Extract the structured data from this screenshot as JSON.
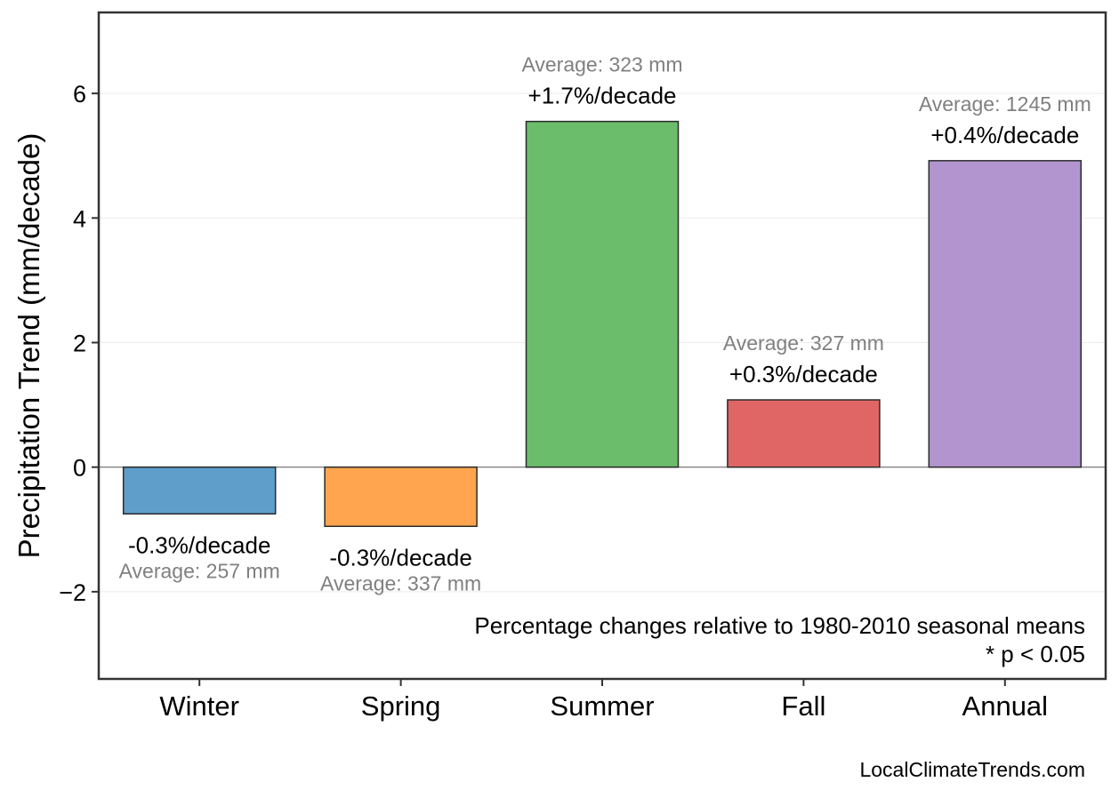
{
  "chart_data": {
    "type": "bar",
    "categories": [
      "Winter",
      "Spring",
      "Summer",
      "Fall",
      "Annual"
    ],
    "values": [
      -0.75,
      -0.95,
      5.55,
      1.08,
      4.92
    ],
    "colors": [
      "#5f9ecb",
      "#ffa44f",
      "#6bbd6b",
      "#e06666",
      "#b294cf"
    ],
    "bar_labels": [
      "-0.3%/decade",
      "-0.3%/decade",
      "+1.7%/decade",
      "+0.3%/decade",
      "+0.4%/decade"
    ],
    "average_labels": [
      "Average: 257 mm",
      "Average: 337 mm",
      "Average: 323 mm",
      "Average: 327 mm",
      "Average: 1245 mm"
    ],
    "xlabel": "",
    "ylabel": "Precipitation Trend (mm/decade)",
    "ylim": [
      -3.4,
      7.3
    ],
    "yticks": [
      -2,
      0,
      2,
      4,
      6
    ],
    "ytick_labels": [
      "−2",
      "0",
      "2",
      "4",
      "6"
    ],
    "grid": true,
    "zero_line": true,
    "annotations": [
      "Percentage changes relative to 1980-2010 seasonal means",
      "* p < 0.05"
    ],
    "credit": "LocalClimateTrends.com"
  }
}
